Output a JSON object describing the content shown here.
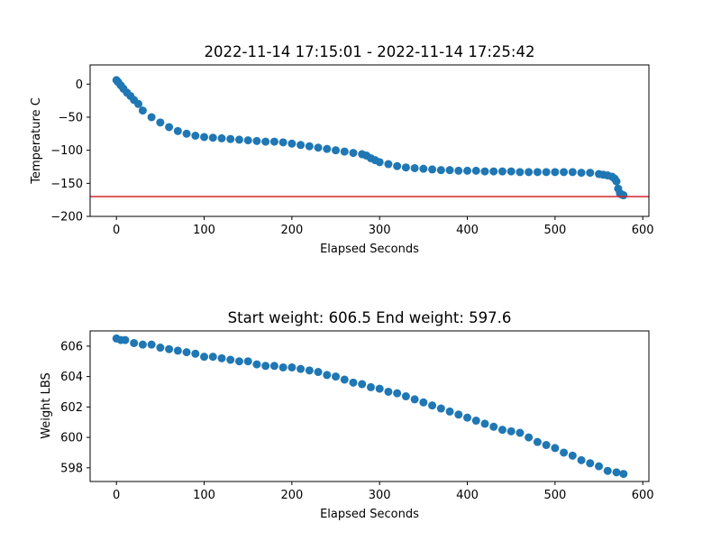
{
  "colors": {
    "points": "#1f77b4",
    "reference_line": "#d62728"
  },
  "chart_data": [
    {
      "type": "scatter",
      "title": "2022-11-14 17:15:01 - 2022-11-14 17:25:42",
      "xlabel": "Elapsed Seconds",
      "ylabel": "Temperature C",
      "xlim": [
        -30,
        607
      ],
      "ylim": [
        -200,
        29
      ],
      "xticks": [
        0,
        100,
        200,
        300,
        400,
        500,
        600
      ],
      "yticks": [
        0,
        -50,
        -100,
        -150,
        -200
      ],
      "ytick_labels": [
        "0",
        "−50",
        "−100",
        "−150",
        "−200"
      ],
      "grid": false,
      "reference_line": {
        "orientation": "horizontal",
        "y": -170
      },
      "series": [
        {
          "x": [
            0,
            2,
            5,
            8,
            12,
            16,
            20,
            25,
            30,
            40,
            50,
            60,
            70,
            80,
            90,
            100,
            110,
            120,
            130,
            140,
            150,
            160,
            170,
            180,
            190,
            200,
            210,
            220,
            230,
            240,
            250,
            260,
            270,
            280,
            285,
            290,
            295,
            300,
            310,
            320,
            330,
            340,
            350,
            360,
            370,
            380,
            390,
            400,
            410,
            420,
            430,
            440,
            450,
            460,
            470,
            480,
            490,
            500,
            510,
            520,
            530,
            540,
            550,
            555,
            560,
            565,
            568,
            570,
            572,
            574,
            576,
            578
          ],
          "y": [
            6,
            3,
            -2,
            -7,
            -13,
            -18,
            -24,
            -30,
            -40,
            -50,
            -58,
            -65,
            -71,
            -75,
            -78,
            -80,
            -81,
            -82,
            -83,
            -84,
            -85,
            -86,
            -87,
            -87,
            -88,
            -90,
            -92,
            -94,
            -96,
            -98,
            -100,
            -102,
            -104,
            -106,
            -108,
            -112,
            -115,
            -118,
            -121,
            -124,
            -126,
            -127,
            -128,
            -129,
            -130,
            -130,
            -131,
            -131,
            -131,
            -132,
            -132,
            -132,
            -132,
            -133,
            -133,
            -133,
            -133,
            -133,
            -133,
            -133,
            -134,
            -134,
            -136,
            -137,
            -138,
            -140,
            -143,
            -147,
            -158,
            -165,
            -167,
            -168
          ]
        }
      ]
    },
    {
      "type": "scatter",
      "title": "Start weight: 606.5 End weight: 597.6",
      "xlabel": "Elapsed Seconds",
      "ylabel": "Weight LBS",
      "xlim": [
        -30,
        607
      ],
      "ylim": [
        597.1,
        607.0
      ],
      "xticks": [
        0,
        100,
        200,
        300,
        400,
        500,
        600
      ],
      "yticks": [
        598,
        600,
        602,
        604,
        606
      ],
      "grid": false,
      "series": [
        {
          "x": [
            0,
            5,
            10,
            20,
            30,
            40,
            50,
            60,
            70,
            80,
            90,
            100,
            110,
            120,
            130,
            140,
            150,
            160,
            170,
            180,
            190,
            200,
            210,
            220,
            230,
            240,
            250,
            260,
            270,
            280,
            290,
            300,
            310,
            320,
            330,
            340,
            350,
            360,
            370,
            380,
            390,
            400,
            410,
            420,
            430,
            440,
            450,
            460,
            470,
            480,
            490,
            500,
            510,
            520,
            530,
            540,
            550,
            560,
            570,
            578
          ],
          "y": [
            606.5,
            606.4,
            606.4,
            606.2,
            606.1,
            606.1,
            605.9,
            605.8,
            605.7,
            605.6,
            605.5,
            605.3,
            605.3,
            605.2,
            605.1,
            605.0,
            605.0,
            604.8,
            604.7,
            604.7,
            604.6,
            604.6,
            604.5,
            604.4,
            604.3,
            604.1,
            604.0,
            603.8,
            603.6,
            603.5,
            603.3,
            603.2,
            603.0,
            602.9,
            602.7,
            602.5,
            602.3,
            602.1,
            601.9,
            601.7,
            601.5,
            601.3,
            601.1,
            600.9,
            600.7,
            600.5,
            600.4,
            600.3,
            600.0,
            599.7,
            599.5,
            599.3,
            599.0,
            598.8,
            598.5,
            598.3,
            598.1,
            597.8,
            597.7,
            597.6
          ]
        }
      ]
    }
  ]
}
